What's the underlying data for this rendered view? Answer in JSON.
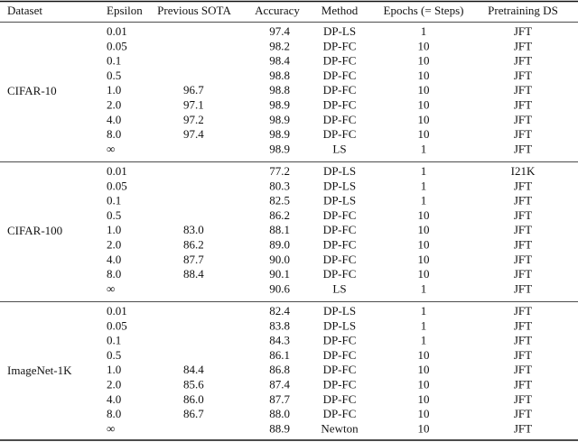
{
  "table": {
    "header": [
      "Dataset",
      "Epsilon",
      "Previous SOTA",
      "Accuracy",
      "Method",
      "Epochs (= Steps)",
      "Pretraining DS"
    ],
    "groups": [
      {
        "dataset": "CIFAR-10",
        "rows": [
          [
            "0.01",
            null,
            "97.4",
            "DP-LS",
            "1",
            "JFT"
          ],
          [
            "0.05",
            null,
            "98.2",
            "DP-FC",
            "10",
            "JFT"
          ],
          [
            "0.1",
            null,
            "98.4",
            "DP-FC",
            "10",
            "JFT"
          ],
          [
            "0.5",
            null,
            "98.8",
            "DP-FC",
            "10",
            "JFT"
          ],
          [
            "1.0",
            "96.7",
            "98.8",
            "DP-FC",
            "10",
            "JFT"
          ],
          [
            "2.0",
            "97.1",
            "98.9",
            "DP-FC",
            "10",
            "JFT"
          ],
          [
            "4.0",
            "97.2",
            "98.9",
            "DP-FC",
            "10",
            "JFT"
          ],
          [
            "8.0",
            "97.4",
            "98.9",
            "DP-FC",
            "10",
            "JFT"
          ],
          [
            "∞",
            null,
            "98.9",
            "LS",
            "1",
            "JFT"
          ]
        ]
      },
      {
        "dataset": "CIFAR-100",
        "rows": [
          [
            "0.01",
            null,
            "77.2",
            "DP-LS",
            "1",
            "I21K"
          ],
          [
            "0.05",
            null,
            "80.3",
            "DP-LS",
            "1",
            "JFT"
          ],
          [
            "0.1",
            null,
            "82.5",
            "DP-LS",
            "1",
            "JFT"
          ],
          [
            "0.5",
            null,
            "86.2",
            "DP-FC",
            "10",
            "JFT"
          ],
          [
            "1.0",
            "83.0",
            "88.1",
            "DP-FC",
            "10",
            "JFT"
          ],
          [
            "2.0",
            "86.2",
            "89.0",
            "DP-FC",
            "10",
            "JFT"
          ],
          [
            "4.0",
            "87.7",
            "90.0",
            "DP-FC",
            "10",
            "JFT"
          ],
          [
            "8.0",
            "88.4",
            "90.1",
            "DP-FC",
            "10",
            "JFT"
          ],
          [
            "∞",
            null,
            "90.6",
            "LS",
            "1",
            "JFT"
          ]
        ]
      },
      {
        "dataset": "ImageNet-1K",
        "rows": [
          [
            "0.01",
            null,
            "82.4",
            "DP-LS",
            "1",
            "JFT"
          ],
          [
            "0.05",
            null,
            "83.8",
            "DP-LS",
            "1",
            "JFT"
          ],
          [
            "0.1",
            null,
            "84.3",
            "DP-FC",
            "1",
            "JFT"
          ],
          [
            "0.5",
            null,
            "86.1",
            "DP-FC",
            "10",
            "JFT"
          ],
          [
            "1.0",
            "84.4",
            "86.8",
            "DP-FC",
            "10",
            "JFT"
          ],
          [
            "2.0",
            "85.6",
            "87.4",
            "DP-FC",
            "10",
            "JFT"
          ],
          [
            "4.0",
            "86.0",
            "87.7",
            "DP-FC",
            "10",
            "JFT"
          ],
          [
            "8.0",
            "86.7",
            "88.0",
            "DP-FC",
            "10",
            "JFT"
          ],
          [
            "∞",
            null,
            "88.9",
            "Newton",
            "10",
            "JFT"
          ]
        ]
      }
    ]
  }
}
